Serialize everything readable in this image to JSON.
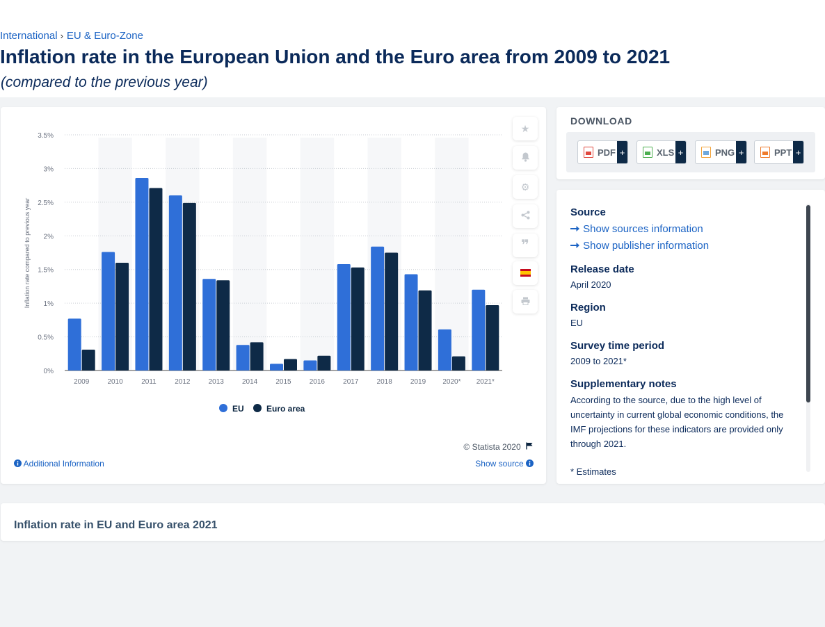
{
  "breadcrumb": {
    "items": [
      "International",
      "EU & Euro-Zone"
    ]
  },
  "page": {
    "title": "Inflation rate in the European Union and the Euro area from 2009 to 2021",
    "subtitle": "(compared to the previous year)"
  },
  "colors": {
    "eu": "#2f6fd8",
    "euro_area": "#0e2a47",
    "link": "#1b63c4"
  },
  "chart_data": {
    "type": "bar",
    "title": "",
    "xlabel": "",
    "ylabel": "Inflation rate compared to previous year",
    "categories": [
      "2009",
      "2010",
      "2011",
      "2012",
      "2013",
      "2014",
      "2015",
      "2016",
      "2017",
      "2018",
      "2019",
      "2020*",
      "2021*"
    ],
    "series": [
      {
        "name": "EU",
        "values": [
          0.77,
          1.76,
          2.86,
          2.6,
          1.36,
          0.38,
          0.1,
          0.15,
          1.58,
          1.84,
          1.43,
          0.61,
          1.2
        ]
      },
      {
        "name": "Euro area",
        "values": [
          0.31,
          1.6,
          2.71,
          2.49,
          1.34,
          0.42,
          0.17,
          0.22,
          1.53,
          1.75,
          1.19,
          0.21,
          0.97
        ]
      }
    ],
    "ylim": [
      0,
      3.5
    ],
    "yticks": [
      "0%",
      "0.5%",
      "1%",
      "1.5%",
      "2%",
      "2.5%",
      "3%",
      "3.5%"
    ],
    "grid": true,
    "legend": "bottom-center"
  },
  "chart_footer": {
    "copyright": "© Statista 2020",
    "additional_info": "Additional Information",
    "show_source": "Show source"
  },
  "sidebar_buttons": [
    "star-icon",
    "bell-icon",
    "gear-icon",
    "share-icon",
    "quote-icon",
    "spain-flag-icon",
    "print-icon"
  ],
  "download": {
    "title": "DOWNLOAD",
    "buttons": [
      {
        "label": "PDF",
        "color": "#e0493f"
      },
      {
        "label": "XLS",
        "color": "#4caf50"
      },
      {
        "label": "PNG",
        "color": "#f2a33a"
      },
      {
        "label": "PPT",
        "color": "#ef7b2b"
      }
    ],
    "plus": "+"
  },
  "info": {
    "source_heading": "Source",
    "show_sources": "Show sources information",
    "show_publisher": "Show publisher information",
    "release_heading": "Release date",
    "release_value": "April 2020",
    "region_heading": "Region",
    "region_value": "EU",
    "survey_heading": "Survey time period",
    "survey_value": "2009 to 2021*",
    "notes_heading": "Supplementary notes",
    "notes_value": "According to the source, due to the high level of uncertainty in current global economic conditions, the IMF projections for these indicators are provided only through 2021.",
    "footnote": "* Estimates"
  },
  "bottom": {
    "title": "Inflation rate in EU and Euro area 2021"
  }
}
